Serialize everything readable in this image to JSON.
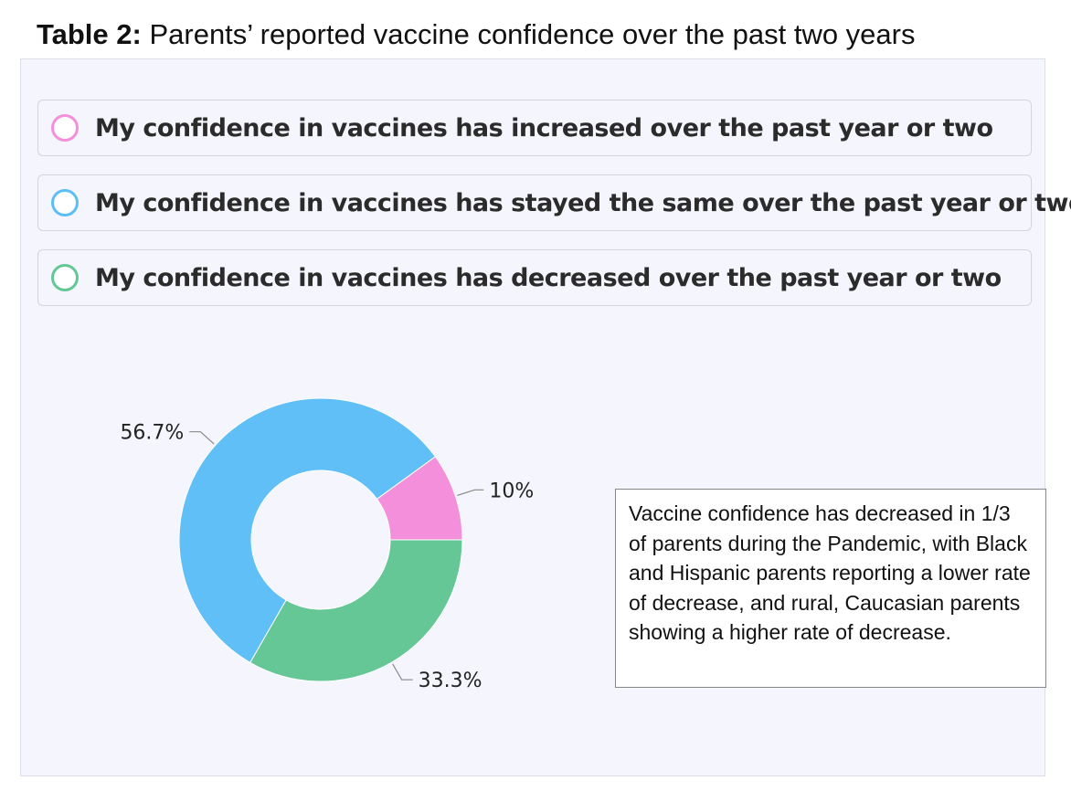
{
  "title": {
    "bold": "Table 2:",
    "rest": " Parents’ reported vaccine confidence over the past two years"
  },
  "legend": [
    {
      "label": "My confidence in vaccines has increased over the past year or two",
      "color": "#f58fd9"
    },
    {
      "label": "My confidence in vaccines has stayed the same over the past year or two",
      "color": "#5bbff5"
    },
    {
      "label": "My confidence in vaccines has decreased over the past year or two",
      "color": "#63c795"
    }
  ],
  "chart_data": {
    "type": "pie",
    "donut": true,
    "categories": [
      "Increased",
      "Stayed the same",
      "Decreased"
    ],
    "values": [
      10,
      56.7,
      33.3
    ],
    "labels": [
      "10%",
      "56.7%",
      "33.3%"
    ],
    "colors": [
      "#f48fdb",
      "#5fbff6",
      "#64c795"
    ]
  },
  "note": "Vaccine confidence has decreased in 1/3 of parents during the Pandemic, with Black and Hispanic parents reporting a lower rate of decrease, and rural, Caucasian parents showing a higher rate of decrease."
}
